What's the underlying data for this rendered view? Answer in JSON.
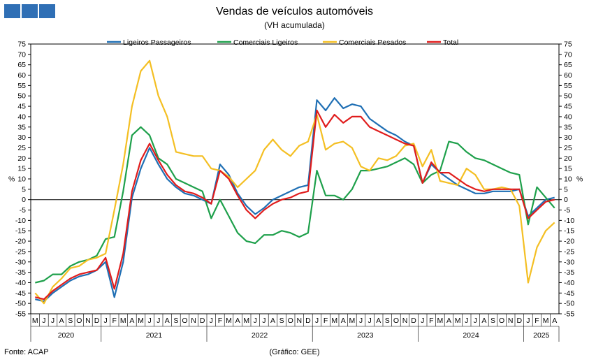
{
  "header": {
    "title": "Vendas de veículos automóveis",
    "subtitle": "(VH acumulada)"
  },
  "footer": {
    "source": "Fonte: ACAP",
    "credit": "(Gráfico: GEE)"
  },
  "chart_data": {
    "type": "line",
    "ylabel": "%",
    "ylim": [
      -55,
      75
    ],
    "ytick_step": 5,
    "grid": false,
    "legend_position": "top",
    "x": [
      "M",
      "J",
      "J",
      "A",
      "S",
      "O",
      "N",
      "D",
      "J",
      "F",
      "M",
      "A",
      "M",
      "J",
      "J",
      "A",
      "S",
      "O",
      "N",
      "D",
      "J",
      "F",
      "M",
      "A",
      "M",
      "J",
      "J",
      "A",
      "S",
      "O",
      "N",
      "D",
      "J",
      "F",
      "M",
      "A",
      "M",
      "J",
      "J",
      "A",
      "S",
      "O",
      "N",
      "D",
      "J",
      "F",
      "M",
      "A",
      "M",
      "J",
      "J",
      "A",
      "S",
      "O",
      "N",
      "D",
      "J",
      "F",
      "M",
      "A"
    ],
    "years": [
      {
        "label": "2020",
        "start": 0,
        "end": 7
      },
      {
        "label": "2021",
        "start": 8,
        "end": 19
      },
      {
        "label": "2022",
        "start": 20,
        "end": 31
      },
      {
        "label": "2023",
        "start": 32,
        "end": 43
      },
      {
        "label": "2024",
        "start": 44,
        "end": 55
      },
      {
        "label": "2025",
        "start": 56,
        "end": 59
      }
    ],
    "series": [
      {
        "name": "Ligeiros Passageiros",
        "color": "#1f6fb4",
        "values": [
          -48,
          -49,
          -45,
          -42,
          -39,
          -37,
          -36,
          -34,
          -30,
          -47,
          -30,
          1,
          15,
          25,
          17,
          10,
          6,
          3,
          2,
          0,
          -2,
          17,
          12,
          3,
          -3,
          -7,
          -4,
          0,
          2,
          4,
          6,
          7,
          48,
          43,
          49,
          44,
          46,
          45,
          39,
          36,
          33,
          31,
          28,
          26,
          8,
          17,
          13,
          10,
          7,
          5,
          3,
          3,
          4,
          4,
          4,
          5,
          -8,
          -4,
          0,
          1
        ]
      },
      {
        "name": "Comerciais Ligeiros",
        "color": "#1ea04b",
        "values": [
          -40,
          -39,
          -36,
          -36,
          -32,
          -30,
          -29,
          -27,
          -19,
          -18,
          4,
          31,
          35,
          31,
          20,
          17,
          10,
          8,
          6,
          4,
          -9,
          0,
          -8,
          -16,
          -20,
          -21,
          -17,
          -17,
          -15,
          -16,
          -18,
          -16,
          14,
          2,
          2,
          0,
          5,
          14,
          14,
          15,
          16,
          18,
          20,
          17,
          8,
          12,
          14,
          28,
          27,
          23,
          20,
          19,
          17,
          15,
          13,
          12,
          -12,
          6,
          1,
          -4
        ]
      },
      {
        "name": "Comerciais Pesados",
        "color": "#f4bf23",
        "values": [
          -45,
          -50,
          -42,
          -38,
          -33,
          -32,
          -29,
          -28,
          -26,
          -5,
          17,
          45,
          62,
          67,
          50,
          40,
          23,
          22,
          21,
          21,
          15,
          14,
          11,
          6,
          10,
          14,
          24,
          29,
          24,
          21,
          26,
          28,
          41,
          24,
          27,
          28,
          25,
          16,
          14,
          20,
          19,
          21,
          26,
          27,
          16,
          24,
          9,
          8,
          7,
          15,
          12,
          5,
          5,
          6,
          5,
          -3,
          -40,
          -23,
          -15,
          -11
        ]
      },
      {
        "name": "Total",
        "color": "#e01c1c",
        "values": [
          -47,
          -48,
          -44,
          -41,
          -38,
          -36,
          -35,
          -34,
          -28,
          -43,
          -26,
          4,
          19,
          27,
          19,
          12,
          7,
          4,
          3,
          1,
          -2,
          14,
          10,
          2,
          -5,
          -9,
          -5,
          -2,
          0,
          1,
          3,
          4,
          43,
          35,
          41,
          37,
          40,
          40,
          35,
          33,
          31,
          29,
          27,
          26,
          8,
          18,
          13,
          13,
          10,
          7,
          5,
          4,
          5,
          5,
          5,
          5,
          -9,
          -5,
          -1,
          0
        ]
      }
    ]
  }
}
